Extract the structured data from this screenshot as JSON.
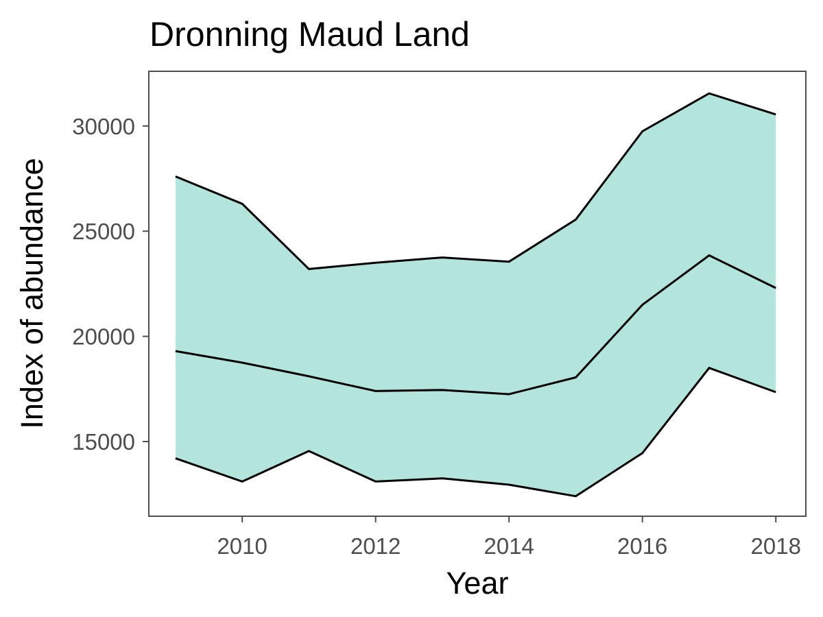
{
  "chart_data": {
    "type": "area",
    "title": "Dronning Maud Land",
    "xlabel": "Year",
    "ylabel": "Index of abundance",
    "x": [
      2009,
      2010,
      2011,
      2012,
      2013,
      2014,
      2015,
      2016,
      2017,
      2018
    ],
    "series": [
      {
        "role": "upper",
        "values": [
          27600,
          26300,
          23200,
          23500,
          23750,
          23550,
          25550,
          29750,
          31550,
          30550
        ]
      },
      {
        "role": "central",
        "values": [
          19300,
          18750,
          18100,
          17400,
          17450,
          17250,
          18050,
          21500,
          23850,
          22300
        ]
      },
      {
        "role": "lower",
        "values": [
          14200,
          13100,
          14550,
          13100,
          13250,
          12950,
          12400,
          14450,
          18500,
          17350
        ]
      }
    ],
    "fill_color": "#b3e5dc",
    "line_color": "#000000",
    "xlim": [
      2008.6,
      2018.45
    ],
    "ylim": [
      11450,
      32600
    ],
    "xticks": [
      "2010",
      "2012",
      "2014",
      "2016",
      "2018"
    ],
    "yticks": [
      "15000",
      "20000",
      "25000",
      "30000"
    ],
    "grid": false
  }
}
